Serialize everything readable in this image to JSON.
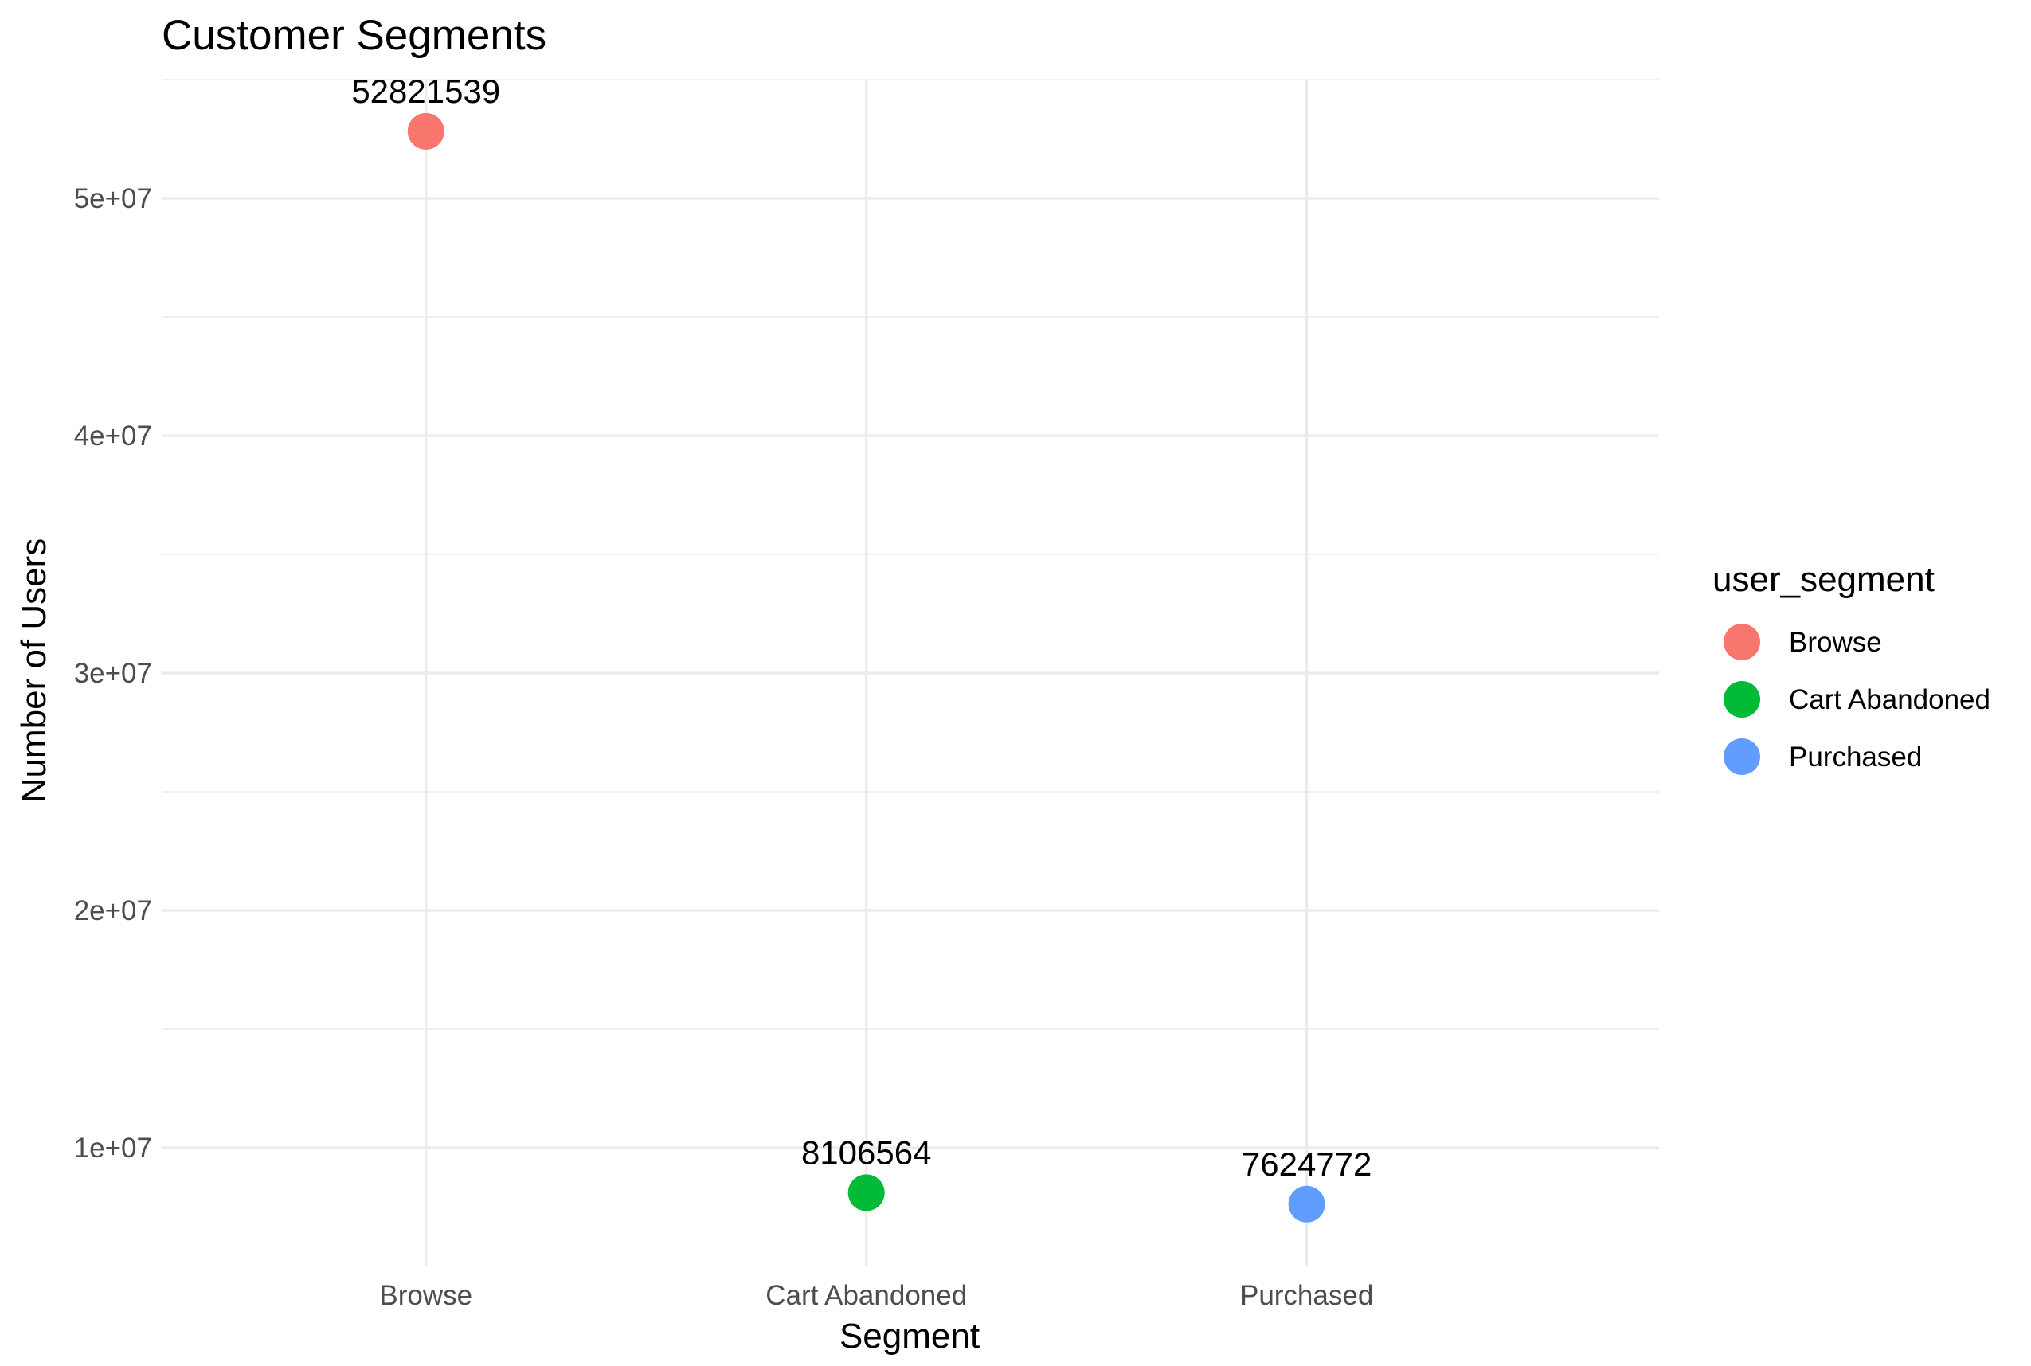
{
  "chart_data": {
    "type": "scatter",
    "title": "Customer Segments",
    "xlabel": "Segment",
    "ylabel": "Number of Users",
    "categories": [
      "Browse",
      "Cart Abandoned",
      "Purchased"
    ],
    "values": [
      52821539,
      8106564,
      7624772
    ],
    "data_labels": [
      "52821539",
      "8106564",
      "7624772"
    ],
    "colors": [
      "#F8766D",
      "#00BA38",
      "#619CFF"
    ],
    "ylim": [
      5000000,
      55000000
    ],
    "y_ticks": [
      10000000,
      20000000,
      30000000,
      40000000,
      50000000
    ],
    "y_tick_labels": [
      "1e+07",
      "2e+07",
      "3e+07",
      "4e+07",
      "5e+07"
    ],
    "grid": true,
    "legend": {
      "title": "user_segment",
      "position": "right",
      "entries": [
        "Browse",
        "Cart Abandoned",
        "Purchased"
      ]
    }
  }
}
